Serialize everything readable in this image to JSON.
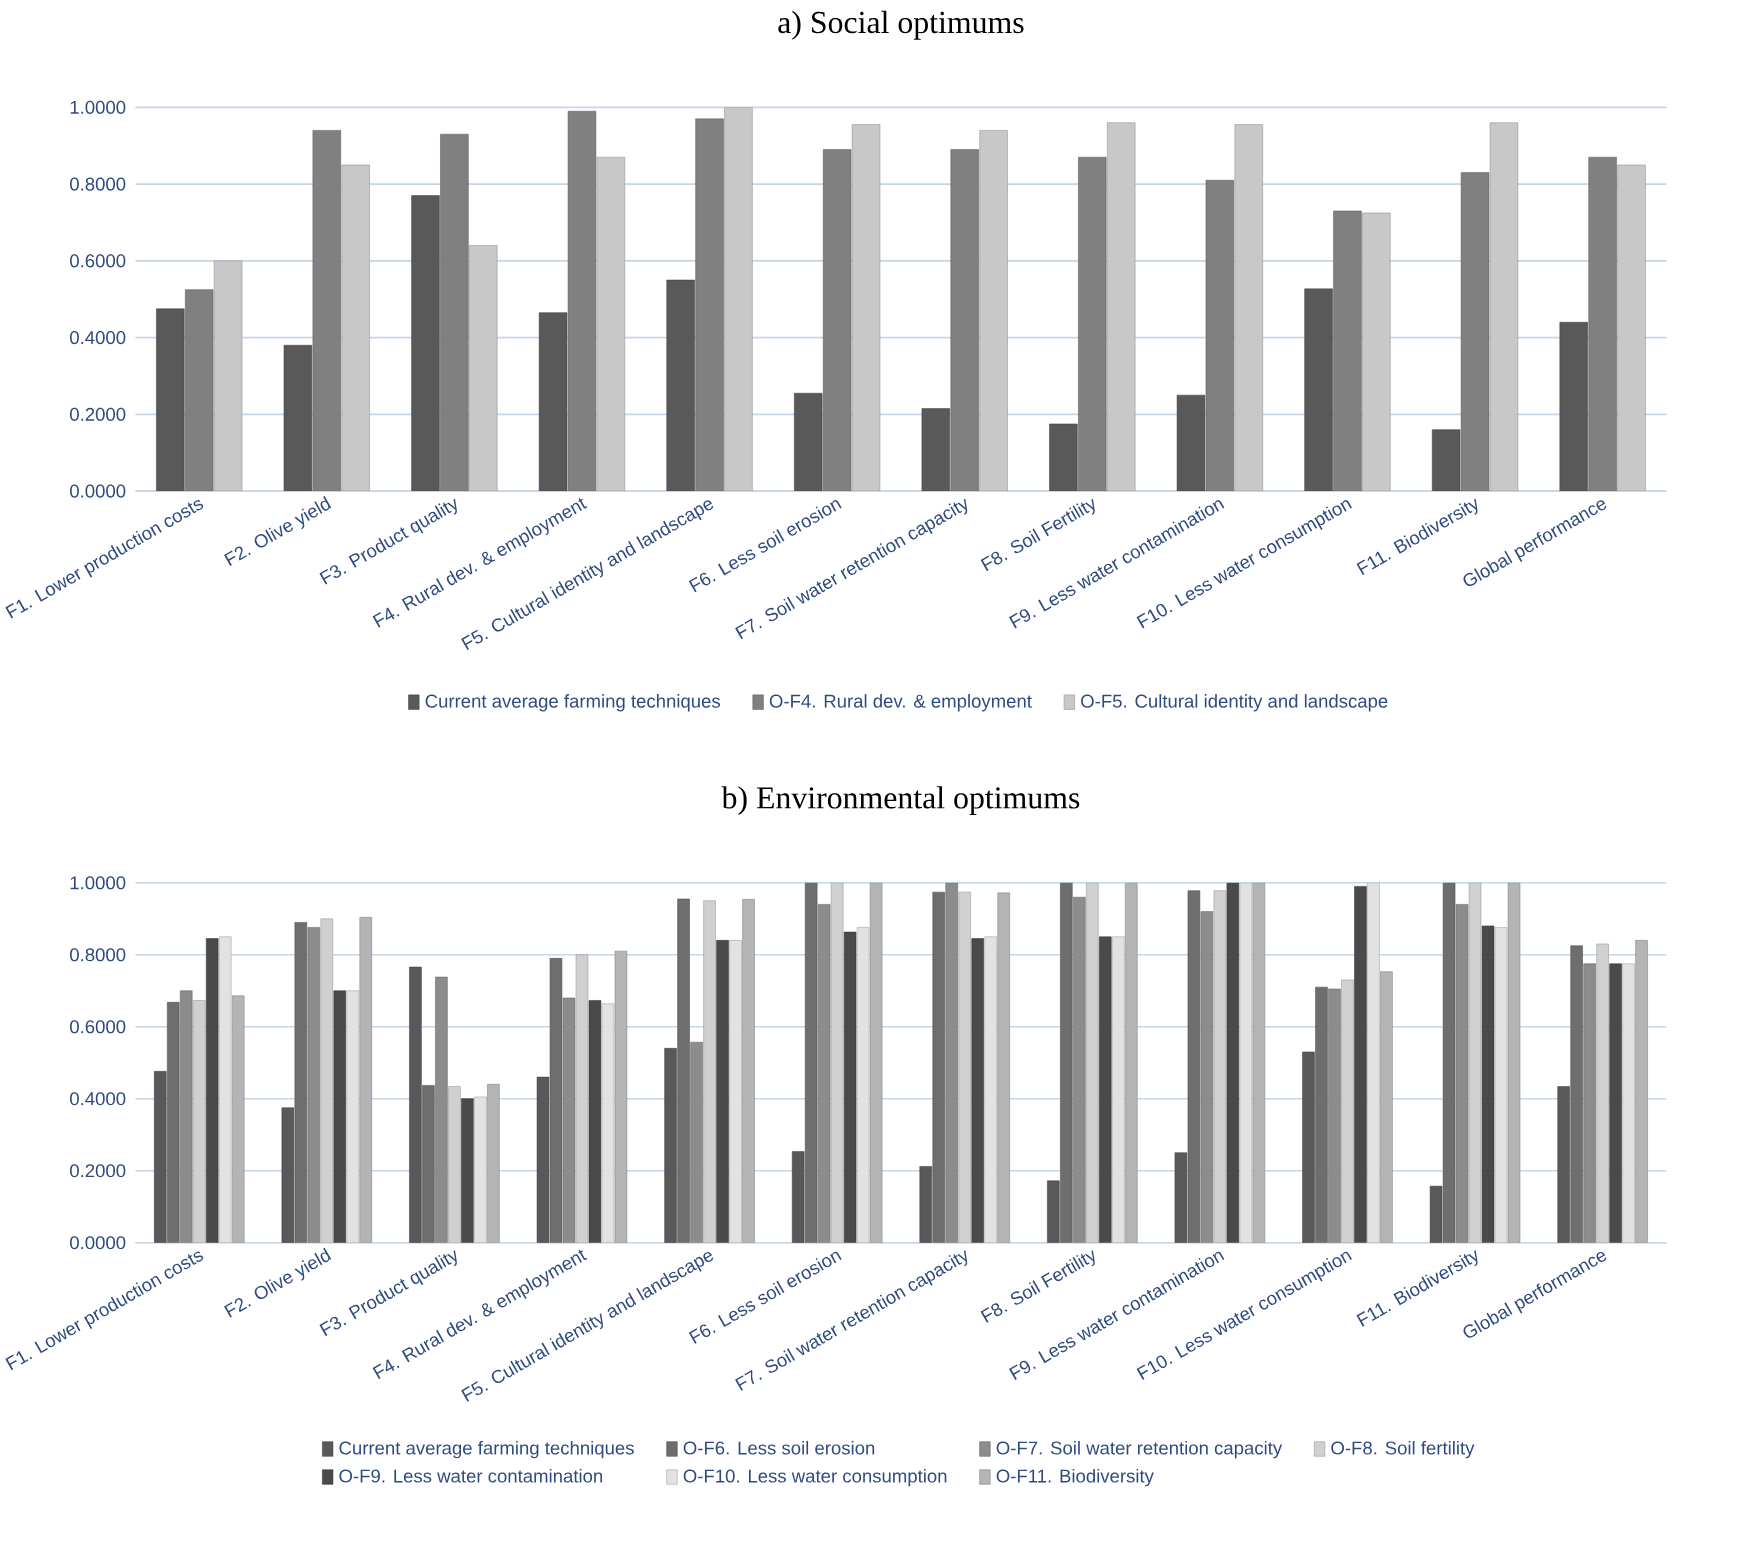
{
  "chart_data": [
    {
      "type": "bar",
      "title": "a) Social optimums",
      "categories": [
        "F1. Lower production costs",
        "F2. Olive yield",
        "F3. Product quality",
        "F4. Rural dev. & employment",
        "F5. Cultural identity and landscape",
        "F6. Less soil erosion",
        "F7. Soil water retention capacity",
        "F8. Soil Fertility",
        "F9. Less water contamination",
        "F10. Less water consumption",
        "F11. Biodiversity",
        "Global performance"
      ],
      "series": [
        {
          "name": "Current average farming techniques",
          "color": "#595959",
          "values": [
            0.475,
            0.38,
            0.77,
            0.465,
            0.55,
            0.255,
            0.215,
            0.175,
            0.25,
            0.527,
            0.16,
            0.44
          ]
        },
        {
          "name": "O-F4. Rural dev. & employment",
          "color": "#808080",
          "values": [
            0.525,
            0.94,
            0.93,
            0.99,
            0.97,
            0.89,
            0.89,
            0.87,
            0.81,
            0.73,
            0.83,
            0.87
          ]
        },
        {
          "name": "O-F5. Cultural identity and landscape",
          "color": "#c8c8c8",
          "values": [
            0.6,
            0.85,
            0.64,
            0.87,
            1.0,
            0.955,
            0.94,
            0.96,
            0.955,
            0.725,
            0.96,
            0.85
          ]
        }
      ],
      "ylim": [
        0,
        1
      ],
      "yticks": [
        {
          "value": 0,
          "label": "0.0000"
        },
        {
          "value": 0.2,
          "label": "0.2000"
        },
        {
          "value": 0.4,
          "label": "0.4000"
        },
        {
          "value": 0.6,
          "label": "0.6000"
        },
        {
          "value": 0.8,
          "label": "0.8000"
        },
        {
          "value": 1,
          "label": "1.0000"
        }
      ],
      "grid": "y",
      "legend": "bottom"
    },
    {
      "type": "bar",
      "title": "b) Environmental optimums",
      "categories": [
        "F1. Lower production costs",
        "F2. Olive yield",
        "F3. Product quality",
        "F4. Rural dev. & employment",
        "F5. Cultural identity and landscape",
        "F6. Less soil erosion",
        "F7. Soil water retention capacity",
        "F8. Soil Fertility",
        "F9. Less water contamination",
        "F10. Less water consumption",
        "F11. Biodiversity",
        "Global performance"
      ],
      "series": [
        {
          "name": "Current average farming techniques",
          "color": "#595959",
          "values": [
            0.476,
            0.375,
            0.766,
            0.46,
            0.54,
            0.253,
            0.212,
            0.172,
            0.25,
            0.53,
            0.157,
            0.434
          ]
        },
        {
          "name": "O-F6. Less soil erosion",
          "color": "#6e6e6e",
          "values": [
            0.668,
            0.89,
            0.437,
            0.79,
            0.955,
            1.0,
            0.974,
            1.0,
            0.978,
            0.71,
            1.0,
            0.825
          ]
        },
        {
          "name": "O-F7. Soil water retention capacity",
          "color": "#8c8c8c",
          "values": [
            0.7,
            0.876,
            0.738,
            0.68,
            0.557,
            0.94,
            1.0,
            0.96,
            0.92,
            0.705,
            0.94,
            0.775
          ]
        },
        {
          "name": "O-F8. Soil fertility",
          "color": "#d0d0d0",
          "values": [
            0.673,
            0.9,
            0.434,
            0.8,
            0.95,
            1.0,
            0.974,
            1.0,
            0.978,
            0.73,
            1.0,
            0.83
          ]
        },
        {
          "name": "O-F9. Less water contamination",
          "color": "#4a4a4a",
          "values": [
            0.845,
            0.7,
            0.4,
            0.673,
            0.84,
            0.863,
            0.845,
            0.85,
            1.0,
            0.99,
            0.88,
            0.775
          ]
        },
        {
          "name": "O-F10. Less water consumption",
          "color": "#e2e2e2",
          "values": [
            0.85,
            0.7,
            0.405,
            0.664,
            0.84,
            0.876,
            0.85,
            0.85,
            1.0,
            1.0,
            0.876,
            0.775
          ]
        },
        {
          "name": "O-F11. Biodiversity",
          "color": "#b4b4b4",
          "values": [
            0.686,
            0.904,
            0.44,
            0.81,
            0.954,
            1.0,
            0.972,
            1.0,
            1.0,
            0.753,
            1.0,
            0.84
          ]
        }
      ],
      "ylim": [
        0,
        1
      ],
      "yticks": [
        {
          "value": 0,
          "label": "0.0000"
        },
        {
          "value": 0.2,
          "label": "0.2000"
        },
        {
          "value": 0.4,
          "label": "0.4000"
        },
        {
          "value": 0.6,
          "label": "0.6000"
        },
        {
          "value": 0.8,
          "label": "0.8000"
        },
        {
          "value": 1,
          "label": "1.0000"
        }
      ],
      "grid": "y",
      "legend": "bottom"
    }
  ]
}
